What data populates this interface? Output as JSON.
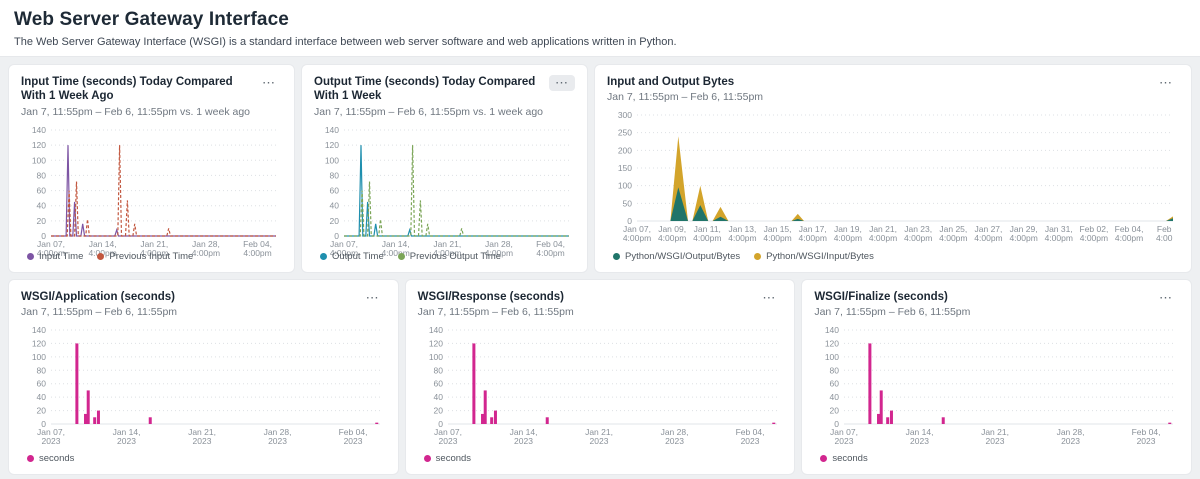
{
  "header": {
    "title": "Web Server Gateway Interface",
    "subtitle": "The Web Server Gateway Interface (WSGI) is a standard interface between web server software and web applications written in Python."
  },
  "colors": {
    "input_time": "#7d55a4",
    "previous_input_time": "#c2573f",
    "output_time": "#1f8fae",
    "previous_output_time": "#7ba557",
    "output_bytes": "#20756a",
    "input_bytes": "#d3a42b",
    "seconds_bars": "#d2268f"
  },
  "panels": [
    {
      "title": "Input Time (seconds) Today Compared With 1 Week Ago",
      "subtitle": "Jan 7, 11:55pm – Feb 6, 11:55pm vs. 1 week ago",
      "menu": "⋯",
      "chart_data": {
        "type": "line",
        "xlim": [
          0,
          30.5
        ],
        "ylim": [
          0,
          140
        ],
        "yticks": [
          0,
          20,
          40,
          60,
          80,
          100,
          120,
          140
        ],
        "xticks": [
          {
            "x": 0,
            "lines": [
              "Jan 07,",
              "4:00pm"
            ]
          },
          {
            "x": 7,
            "lines": [
              "Jan 14,",
              "4:00pm"
            ]
          },
          {
            "x": 14,
            "lines": [
              "Jan 21,",
              "4:00pm"
            ]
          },
          {
            "x": 21,
            "lines": [
              "Jan 28,",
              "4:00pm"
            ]
          },
          {
            "x": 28,
            "lines": [
              "Feb 04,",
              "4:00pm"
            ]
          }
        ],
        "series": [
          {
            "name": "Input Time",
            "color": "#7d55a4",
            "dash": false,
            "points": [
              [
                0,
                0
              ],
              [
                2.05,
                0
              ],
              [
                2.3,
                120
              ],
              [
                2.55,
                0
              ],
              [
                2.95,
                0
              ],
              [
                3.2,
                45
              ],
              [
                3.45,
                0
              ],
              [
                4.05,
                0
              ],
              [
                4.3,
                16
              ],
              [
                4.55,
                0
              ],
              [
                8.65,
                0
              ],
              [
                8.9,
                8
              ],
              [
                9.15,
                0
              ],
              [
                30.5,
                0
              ]
            ]
          },
          {
            "name": "Previous Input Time",
            "color": "#c2573f",
            "dash": true,
            "points": [
              [
                0,
                0
              ],
              [
                2.2,
                0
              ],
              [
                2.45,
                60
              ],
              [
                2.7,
                0
              ],
              [
                3.2,
                0
              ],
              [
                3.45,
                72
              ],
              [
                3.7,
                0
              ],
              [
                4.7,
                0
              ],
              [
                4.95,
                22
              ],
              [
                5.2,
                0
              ],
              [
                9.05,
                0
              ],
              [
                9.3,
                120
              ],
              [
                9.55,
                0
              ],
              [
                10.1,
                0
              ],
              [
                10.35,
                47
              ],
              [
                10.6,
                0
              ],
              [
                11.1,
                0
              ],
              [
                11.35,
                16
              ],
              [
                11.6,
                0
              ],
              [
                15.7,
                0
              ],
              [
                15.95,
                10
              ],
              [
                16.2,
                0
              ],
              [
                30.5,
                0
              ]
            ]
          }
        ]
      }
    },
    {
      "title": "Output Time (seconds) Today Compared With 1 Week",
      "subtitle": "Jan 7, 11:55pm – Feb 6, 11:55pm vs. 1 week ago",
      "menu": "⋯",
      "chart_data": {
        "type": "line",
        "xlim": [
          0,
          30.5
        ],
        "ylim": [
          0,
          140
        ],
        "yticks": [
          0,
          20,
          40,
          60,
          80,
          100,
          120,
          140
        ],
        "xticks": [
          {
            "x": 0,
            "lines": [
              "Jan 07,",
              "4:00pm"
            ]
          },
          {
            "x": 7,
            "lines": [
              "Jan 14,",
              "4:00pm"
            ]
          },
          {
            "x": 14,
            "lines": [
              "Jan 21,",
              "4:00pm"
            ]
          },
          {
            "x": 21,
            "lines": [
              "Jan 28,",
              "4:00pm"
            ]
          },
          {
            "x": 28,
            "lines": [
              "Feb 04,",
              "4:00pm"
            ]
          }
        ],
        "series": [
          {
            "name": "Output Time",
            "color": "#1f8fae",
            "dash": false,
            "points": [
              [
                0,
                0
              ],
              [
                2.05,
                0
              ],
              [
                2.3,
                120
              ],
              [
                2.55,
                0
              ],
              [
                2.95,
                0
              ],
              [
                3.2,
                45
              ],
              [
                3.45,
                0
              ],
              [
                4.05,
                0
              ],
              [
                4.3,
                16
              ],
              [
                4.55,
                0
              ],
              [
                8.65,
                0
              ],
              [
                8.9,
                8
              ],
              [
                9.15,
                0
              ],
              [
                30.5,
                0
              ]
            ]
          },
          {
            "name": "Previous Output Time",
            "color": "#7ba557",
            "dash": true,
            "points": [
              [
                0,
                0
              ],
              [
                2.2,
                0
              ],
              [
                2.45,
                60
              ],
              [
                2.7,
                0
              ],
              [
                3.2,
                0
              ],
              [
                3.45,
                72
              ],
              [
                3.7,
                0
              ],
              [
                4.7,
                0
              ],
              [
                4.95,
                22
              ],
              [
                5.2,
                0
              ],
              [
                9.05,
                0
              ],
              [
                9.3,
                120
              ],
              [
                9.55,
                0
              ],
              [
                10.1,
                0
              ],
              [
                10.35,
                47
              ],
              [
                10.6,
                0
              ],
              [
                11.1,
                0
              ],
              [
                11.35,
                16
              ],
              [
                11.6,
                0
              ],
              [
                15.7,
                0
              ],
              [
                15.95,
                10
              ],
              [
                16.2,
                0
              ],
              [
                30.5,
                0
              ]
            ]
          }
        ]
      }
    },
    {
      "title": "Input and Output Bytes",
      "subtitle": "Jan 7, 11:55pm – Feb 6, 11:55pm",
      "menu": "⋯",
      "chart_data": {
        "type": "area",
        "xlim": [
          0,
          30.5
        ],
        "ylim": [
          0,
          300
        ],
        "yticks": [
          0,
          50,
          100,
          150,
          200,
          250,
          300
        ],
        "xticks": [
          {
            "x": 0,
            "lines": [
              "Jan 07,",
              "4:00pm"
            ]
          },
          {
            "x": 2,
            "lines": [
              "Jan 09,",
              "4:00pm"
            ]
          },
          {
            "x": 4,
            "lines": [
              "Jan 11,",
              "4:00pm"
            ]
          },
          {
            "x": 6,
            "lines": [
              "Jan 13,",
              "4:00pm"
            ]
          },
          {
            "x": 8,
            "lines": [
              "Jan 15,",
              "4:00pm"
            ]
          },
          {
            "x": 10,
            "lines": [
              "Jan 17,",
              "4:00pm"
            ]
          },
          {
            "x": 12,
            "lines": [
              "Jan 19,",
              "4:00pm"
            ]
          },
          {
            "x": 14,
            "lines": [
              "Jan 21,",
              "4:00pm"
            ]
          },
          {
            "x": 16,
            "lines": [
              "Jan 23,",
              "4:00pm"
            ]
          },
          {
            "x": 18,
            "lines": [
              "Jan 25,",
              "4:00pm"
            ]
          },
          {
            "x": 20,
            "lines": [
              "Jan 27,",
              "4:00pm"
            ]
          },
          {
            "x": 22,
            "lines": [
              "Jan 29,",
              "4:00pm"
            ]
          },
          {
            "x": 24,
            "lines": [
              "Jan 31,",
              "4:00pm"
            ]
          },
          {
            "x": 26,
            "lines": [
              "Feb 02,",
              "4:00pm"
            ]
          },
          {
            "x": 28,
            "lines": [
              "Feb 04,",
              "4:00pm"
            ]
          },
          {
            "x": 30,
            "lines": [
              "Feb",
              "4:00"
            ]
          }
        ],
        "x": [
          0,
          1.9,
          2.35,
          2.9,
          3.15,
          3.6,
          4.05,
          4.3,
          4.75,
          5.2,
          8.8,
          9.15,
          9.5,
          30.1,
          30.5
        ],
        "series": [
          {
            "name": "Python/WSGI/Output/Bytes",
            "color": "#20756a",
            "values": [
              0,
              0,
              95,
              0,
              0,
              45,
              0,
              0,
              12,
              0,
              0,
              6,
              0,
              0,
              8
            ]
          },
          {
            "name": "Python/WSGI/Input/Bytes",
            "color": "#d3a42b",
            "values": [
              0,
              0,
              145,
              0,
              0,
              55,
              0,
              0,
              28,
              0,
              0,
              14,
              0,
              0,
              5
            ]
          }
        ]
      }
    },
    {
      "title": "WSGI/Application (seconds)",
      "subtitle": "Jan 7, 11:55pm – Feb 6, 11:55pm",
      "menu": "⋯",
      "chart_data": {
        "type": "bar",
        "xlim": [
          0,
          30.5
        ],
        "ylim": [
          0,
          140
        ],
        "yticks": [
          0,
          20,
          40,
          60,
          80,
          100,
          120,
          140
        ],
        "xticks": [
          {
            "x": 0,
            "lines": [
              "Jan 07,",
              "2023"
            ]
          },
          {
            "x": 7,
            "lines": [
              "Jan 14,",
              "2023"
            ]
          },
          {
            "x": 14,
            "lines": [
              "Jan 21,",
              "2023"
            ]
          },
          {
            "x": 21,
            "lines": [
              "Jan 28,",
              "2023"
            ]
          },
          {
            "x": 28,
            "lines": [
              "Feb 04,",
              "2023"
            ]
          }
        ],
        "series": [
          {
            "name": "seconds",
            "color": "#d2268f"
          }
        ],
        "bars": [
          [
            2.4,
            120
          ],
          [
            3.2,
            15
          ],
          [
            3.45,
            50
          ],
          [
            4.05,
            10
          ],
          [
            4.4,
            20
          ],
          [
            9.2,
            10
          ],
          [
            30.2,
            2
          ]
        ]
      }
    },
    {
      "title": "WSGI/Response (seconds)",
      "subtitle": "Jan 7, 11:55pm – Feb 6, 11:55pm",
      "menu": "⋯",
      "chart_data": {
        "type": "bar",
        "xlim": [
          0,
          30.5
        ],
        "ylim": [
          0,
          140
        ],
        "yticks": [
          0,
          20,
          40,
          60,
          80,
          100,
          120,
          140
        ],
        "xticks": [
          {
            "x": 0,
            "lines": [
              "Jan 07,",
              "2023"
            ]
          },
          {
            "x": 7,
            "lines": [
              "Jan 14,",
              "2023"
            ]
          },
          {
            "x": 14,
            "lines": [
              "Jan 21,",
              "2023"
            ]
          },
          {
            "x": 21,
            "lines": [
              "Jan 28,",
              "2023"
            ]
          },
          {
            "x": 28,
            "lines": [
              "Feb 04,",
              "2023"
            ]
          }
        ],
        "series": [
          {
            "name": "seconds",
            "color": "#d2268f"
          }
        ],
        "bars": [
          [
            2.4,
            120
          ],
          [
            3.2,
            15
          ],
          [
            3.45,
            50
          ],
          [
            4.05,
            10
          ],
          [
            4.4,
            20
          ],
          [
            9.2,
            10
          ],
          [
            30.2,
            2
          ]
        ]
      }
    },
    {
      "title": "WSGI/Finalize (seconds)",
      "subtitle": "Jan 7, 11:55pm – Feb 6, 11:55pm",
      "menu": "⋯",
      "chart_data": {
        "type": "bar",
        "xlim": [
          0,
          30.5
        ],
        "ylim": [
          0,
          140
        ],
        "yticks": [
          0,
          20,
          40,
          60,
          80,
          100,
          120,
          140
        ],
        "xticks": [
          {
            "x": 0,
            "lines": [
              "Jan 07,",
              "2023"
            ]
          },
          {
            "x": 7,
            "lines": [
              "Jan 14,",
              "2023"
            ]
          },
          {
            "x": 14,
            "lines": [
              "Jan 21,",
              "2023"
            ]
          },
          {
            "x": 21,
            "lines": [
              "Jan 28,",
              "2023"
            ]
          },
          {
            "x": 28,
            "lines": [
              "Feb 04,",
              "2023"
            ]
          }
        ],
        "series": [
          {
            "name": "seconds",
            "color": "#d2268f"
          }
        ],
        "bars": [
          [
            2.4,
            120
          ],
          [
            3.2,
            15
          ],
          [
            3.45,
            50
          ],
          [
            4.05,
            10
          ],
          [
            4.4,
            20
          ],
          [
            9.2,
            10
          ],
          [
            30.2,
            2
          ]
        ]
      }
    }
  ]
}
